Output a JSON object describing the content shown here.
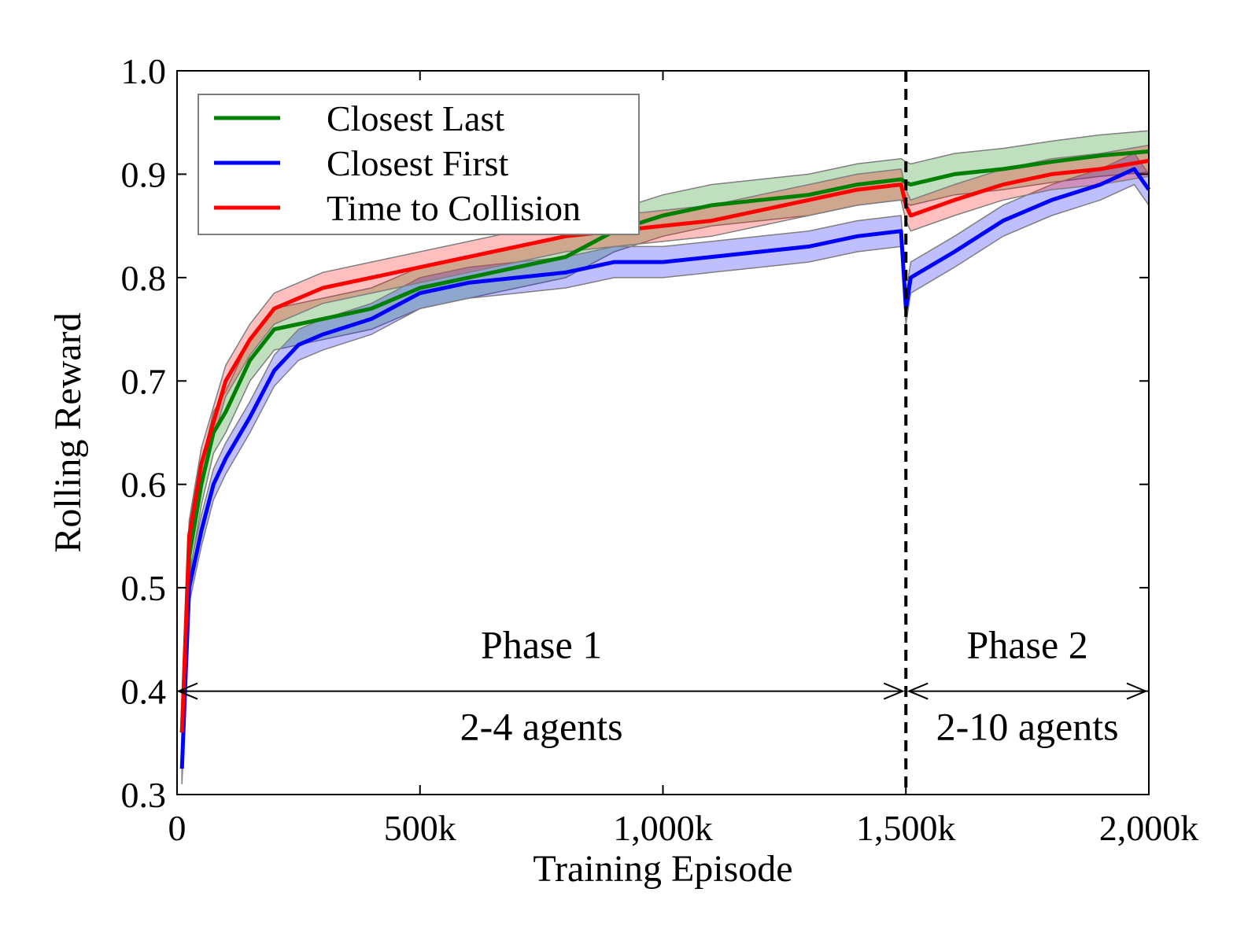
{
  "chart_data": {
    "type": "line",
    "xlabel": "Training Episode",
    "ylabel": "Rolling Reward",
    "xlim": [
      0,
      2000000
    ],
    "ylim": [
      0.3,
      1.0
    ],
    "x_ticks": [
      0,
      500000,
      1000000,
      1500000,
      2000000
    ],
    "x_tick_labels": [
      "0",
      "500k",
      "1,000k",
      "1,500k",
      "2,000k"
    ],
    "y_ticks": [
      0.3,
      0.4,
      0.5,
      0.6,
      0.7,
      0.8,
      0.9,
      1.0
    ],
    "y_tick_labels": [
      "0.3",
      "0.4",
      "0.5",
      "0.6",
      "0.7",
      "0.8",
      "0.9",
      "1.0"
    ],
    "grid": false,
    "legend_position": "top-left",
    "phase_boundary_x": 1500000,
    "annotations": {
      "phase1_label": "Phase 1",
      "phase1_agents": "2-4 agents",
      "phase2_label": "Phase 2",
      "phase2_agents": "2-10 agents"
    },
    "band_color": "#7f7f7f",
    "series": [
      {
        "name": "Closest Last",
        "color": "#008000",
        "x": [
          10000,
          25000,
          50000,
          75000,
          100000,
          150000,
          200000,
          250000,
          300000,
          400000,
          500000,
          600000,
          700000,
          800000,
          900000,
          1000000,
          1100000,
          1200000,
          1300000,
          1400000,
          1490000,
          1500000,
          1510000,
          1600000,
          1700000,
          1800000,
          1900000,
          2000000
        ],
        "y": [
          0.36,
          0.53,
          0.6,
          0.65,
          0.67,
          0.72,
          0.75,
          0.755,
          0.76,
          0.77,
          0.79,
          0.8,
          0.81,
          0.82,
          0.845,
          0.86,
          0.87,
          0.875,
          0.88,
          0.89,
          0.895,
          0.892,
          0.89,
          0.9,
          0.905,
          0.912,
          0.918,
          0.922
        ],
        "band": 0.02
      },
      {
        "name": "Closest First",
        "color": "#0000ff",
        "x": [
          10000,
          25000,
          50000,
          75000,
          100000,
          150000,
          200000,
          250000,
          300000,
          400000,
          500000,
          600000,
          700000,
          800000,
          900000,
          1000000,
          1100000,
          1200000,
          1300000,
          1400000,
          1490000,
          1500000,
          1510000,
          1600000,
          1700000,
          1800000,
          1900000,
          1970000,
          2000000
        ],
        "y": [
          0.325,
          0.5,
          0.555,
          0.6,
          0.625,
          0.665,
          0.71,
          0.735,
          0.745,
          0.76,
          0.785,
          0.795,
          0.8,
          0.805,
          0.815,
          0.815,
          0.82,
          0.825,
          0.83,
          0.84,
          0.845,
          0.77,
          0.8,
          0.825,
          0.855,
          0.875,
          0.89,
          0.905,
          0.885
        ],
        "band": 0.015
      },
      {
        "name": "Time to Collision",
        "color": "#ff0000",
        "x": [
          10000,
          25000,
          50000,
          75000,
          100000,
          150000,
          200000,
          250000,
          300000,
          400000,
          500000,
          600000,
          700000,
          800000,
          900000,
          1000000,
          1100000,
          1200000,
          1300000,
          1400000,
          1490000,
          1500000,
          1510000,
          1600000,
          1700000,
          1800000,
          1900000,
          2000000
        ],
        "y": [
          0.36,
          0.55,
          0.62,
          0.66,
          0.7,
          0.74,
          0.77,
          0.78,
          0.79,
          0.8,
          0.81,
          0.82,
          0.83,
          0.84,
          0.845,
          0.85,
          0.855,
          0.865,
          0.875,
          0.885,
          0.89,
          0.87,
          0.86,
          0.875,
          0.89,
          0.9,
          0.905,
          0.913
        ],
        "band": 0.015
      }
    ]
  }
}
